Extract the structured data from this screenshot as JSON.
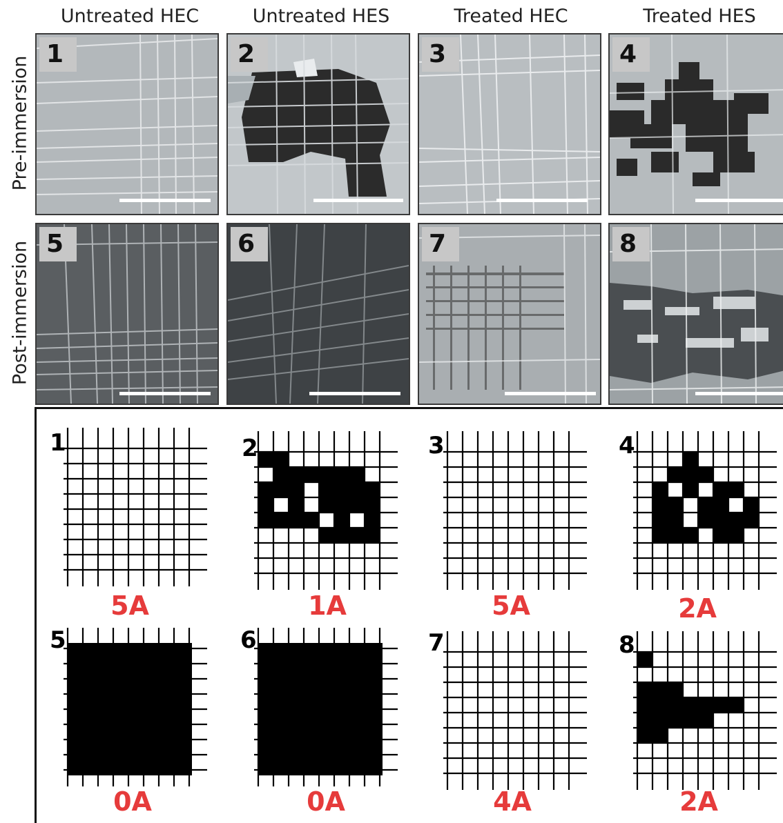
{
  "columns": [
    "Untreated HEC",
    "Untreated HES",
    "Treated HEC",
    "Treated HES"
  ],
  "rows": [
    "Pre-immersion",
    "Post-immersion"
  ],
  "photos": [
    {
      "label": "1"
    },
    {
      "label": "2"
    },
    {
      "label": "3"
    },
    {
      "label": "4"
    },
    {
      "label": "5"
    },
    {
      "label": "6"
    },
    {
      "label": "7"
    },
    {
      "label": "8"
    }
  ],
  "schematics": [
    {
      "label": "1",
      "rating": "5A"
    },
    {
      "label": "2",
      "rating": "1A"
    },
    {
      "label": "3",
      "rating": "5A"
    },
    {
      "label": "4",
      "rating": "2A"
    },
    {
      "label": "5",
      "rating": "0A"
    },
    {
      "label": "6",
      "rating": "0A"
    },
    {
      "label": "7",
      "rating": "4A"
    },
    {
      "label": "8",
      "rating": "2A"
    }
  ],
  "colors": {
    "rating": "#e63b3b",
    "grid": "#000000"
  }
}
